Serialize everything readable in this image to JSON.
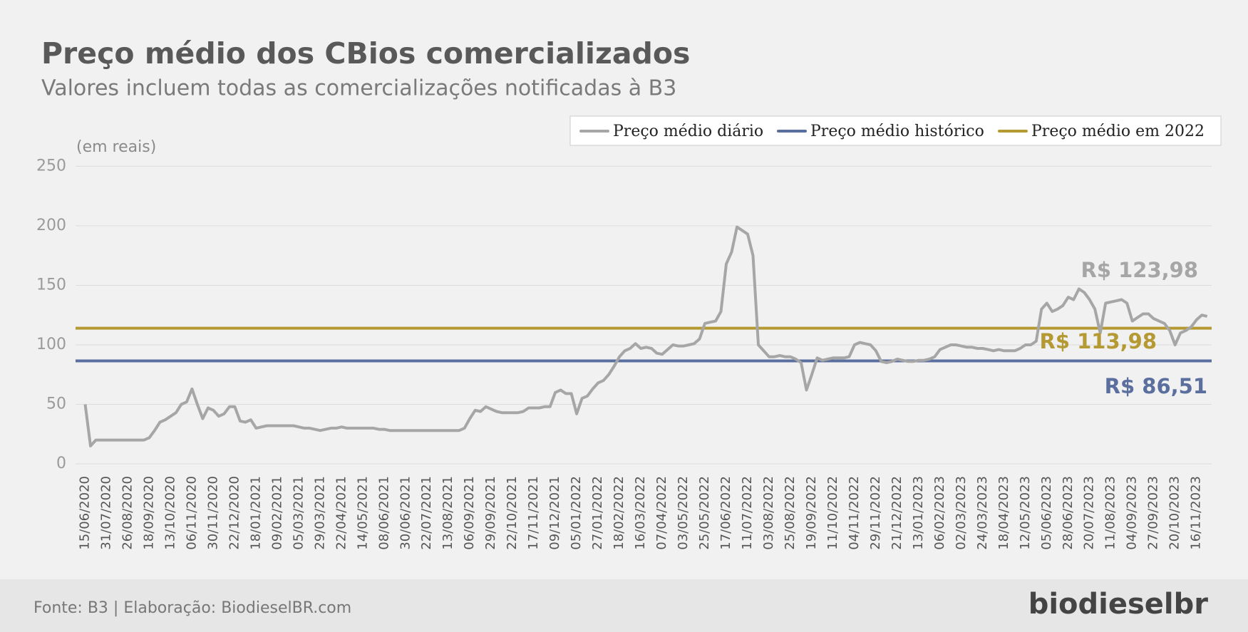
{
  "chart_data": {
    "type": "line",
    "title": "Preço médio dos CBios comercializados",
    "subtitle": "Valores incluem todas as comercializações notificadas à B3",
    "y_axis_label": "(em reais)",
    "categories": [
      "15/06/2020",
      null,
      null,
      null,
      "31/07/2020",
      null,
      null,
      null,
      "26/08/2020",
      null,
      null,
      null,
      "18/09/2020",
      null,
      null,
      null,
      "13/10/2020",
      null,
      null,
      null,
      "06/11/2020",
      null,
      null,
      null,
      "30/11/2020",
      null,
      null,
      null,
      "22/12/2020",
      null,
      null,
      null,
      "18/01/2021",
      null,
      null,
      null,
      "09/02/2021",
      null,
      null,
      null,
      "05/03/2021",
      null,
      null,
      null,
      "29/03/2021",
      null,
      null,
      null,
      "22/04/2021",
      null,
      null,
      null,
      "14/05/2021",
      null,
      null,
      null,
      "08/06/2021",
      null,
      null,
      null,
      "30/06/2021",
      null,
      null,
      null,
      "22/07/2021",
      null,
      null,
      null,
      "13/08/2021",
      null,
      null,
      null,
      "06/09/2021",
      null,
      null,
      null,
      "29/09/2021",
      null,
      null,
      null,
      "22/10/2021",
      null,
      null,
      null,
      "17/11/2021",
      null,
      null,
      null,
      "09/12/2021",
      null,
      null,
      null,
      "05/01/2022",
      null,
      null,
      null,
      "27/01/2022",
      null,
      null,
      null,
      "18/02/2022",
      null,
      null,
      null,
      "16/03/2022",
      null,
      null,
      null,
      "07/04/2022",
      null,
      null,
      null,
      "03/05/2022",
      null,
      null,
      null,
      "25/05/2022",
      null,
      null,
      null,
      "17/06/2022",
      null,
      null,
      null,
      "11/07/2022",
      null,
      null,
      null,
      "03/08/2022",
      null,
      null,
      null,
      "25/08/2022",
      null,
      null,
      null,
      "19/09/2022",
      null,
      null,
      null,
      "11/10/2022",
      null,
      null,
      null,
      "04/11/2022",
      null,
      null,
      null,
      "29/11/2022",
      null,
      null,
      null,
      "21/12/2022",
      null,
      null,
      null,
      "13/01/2023",
      null,
      null,
      null,
      "06/02/2023",
      null,
      null,
      null,
      "02/03/2023",
      null,
      null,
      null,
      "24/03/2023",
      null,
      null,
      null,
      "18/04/2023",
      null,
      null,
      null,
      "12/05/2023",
      null,
      null,
      null,
      "05/06/2023",
      null,
      null,
      null,
      "28/06/2023",
      null,
      null,
      null,
      "20/07/2023",
      null,
      null,
      null,
      "11/08/2023",
      null,
      null,
      null,
      "04/09/2023",
      null,
      null,
      null,
      "27/09/2023",
      null,
      null,
      null,
      "20/10/2023",
      null,
      null,
      null,
      "16/11/2023",
      null,
      null
    ],
    "series": [
      {
        "name": "Preço médio diário",
        "color": "#a6a6a6",
        "end_label": "R$ 123,98",
        "values": [
          50,
          15,
          20,
          20,
          20,
          20,
          20,
          20,
          20,
          20,
          20,
          20,
          22,
          28,
          35,
          37,
          40,
          43,
          50,
          52,
          63,
          50,
          38,
          47,
          45,
          40,
          42,
          48,
          48,
          36,
          35,
          37,
          30,
          31,
          32,
          32,
          32,
          32,
          32,
          32,
          31,
          30,
          30,
          29,
          28,
          29,
          30,
          30,
          31,
          30,
          30,
          30,
          30,
          30,
          30,
          29,
          29,
          28,
          28,
          28,
          28,
          28,
          28,
          28,
          28,
          28,
          28,
          28,
          28,
          28,
          28,
          30,
          38,
          45,
          44,
          48,
          46,
          44,
          43,
          43,
          43,
          43,
          44,
          47,
          47,
          47,
          48,
          48,
          60,
          62,
          59,
          59,
          42,
          55,
          57,
          63,
          68,
          70,
          75,
          82,
          90,
          95,
          97,
          101,
          97,
          98,
          97,
          93,
          92,
          96,
          100,
          99,
          99,
          100,
          101,
          105,
          118,
          119,
          120,
          128,
          168,
          178,
          199,
          196,
          193,
          175,
          100,
          95,
          90,
          90,
          91,
          90,
          90,
          88,
          85,
          62,
          75,
          89,
          87,
          88,
          89,
          89,
          89,
          90,
          100,
          102,
          101,
          100,
          95,
          86,
          85,
          86,
          88,
          87,
          86,
          86,
          87,
          87,
          88,
          90,
          96,
          98,
          100,
          100,
          99,
          98,
          98,
          97,
          97,
          96,
          95,
          96,
          95,
          95,
          95,
          97,
          100,
          100,
          103,
          130,
          135,
          128,
          130,
          133,
          140,
          138,
          147,
          144,
          138,
          130,
          110,
          135,
          136,
          137,
          138,
          135,
          120,
          123,
          126,
          126,
          122,
          120,
          118,
          112,
          100,
          110,
          112,
          115,
          121,
          125,
          123.98
        ]
      }
    ],
    "reference_lines": [
      {
        "name": "Preço médio histórico",
        "color": "#5b6f9e",
        "value": 86.51,
        "label": "R$ 86,51"
      },
      {
        "name": "Preço médio em 2022",
        "color": "#b59a33",
        "value": 113.98,
        "label": "R$ 113,98"
      }
    ],
    "ylim": [
      0,
      250
    ],
    "yticks": [
      0,
      50,
      100,
      150,
      200,
      250
    ],
    "grid": true,
    "legend": "top-right",
    "source": "Fonte: B3 | Elaboração: BiodieselBR.com",
    "logo": "biodieselbr"
  }
}
